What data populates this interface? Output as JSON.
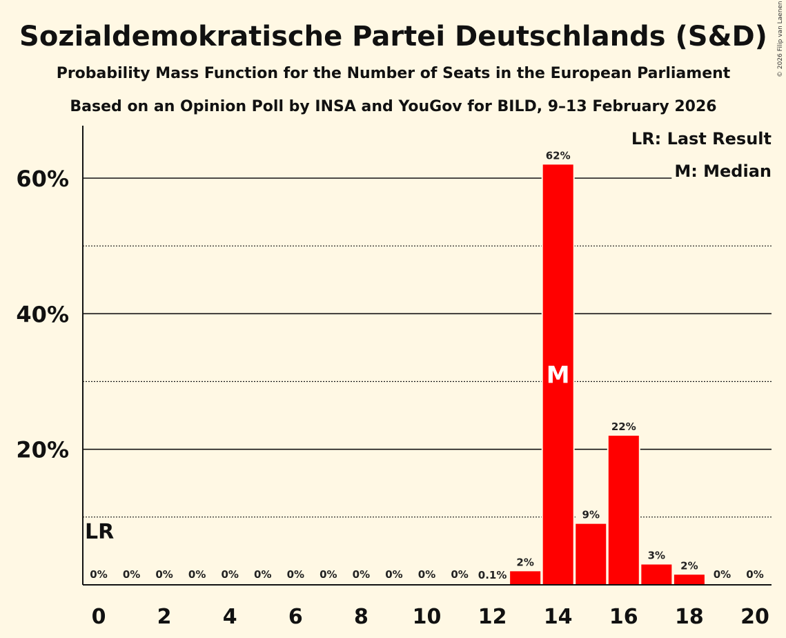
{
  "chart_data": {
    "type": "bar",
    "title": "Sozialdemokratische Partei Deutschlands (S&D)",
    "subtitle1": "Probability Mass Function for the Number of Seats in the European Parliament",
    "subtitle2": "Based on an Opinion Poll by INSA and YouGov for BILD, 9–13 February 2026",
    "copyright": "© 2026 Filip van Laenen",
    "x": [
      0,
      1,
      2,
      3,
      4,
      5,
      6,
      7,
      8,
      9,
      10,
      11,
      12,
      13,
      14,
      15,
      16,
      17,
      18,
      19,
      20
    ],
    "values": [
      0,
      0,
      0,
      0,
      0,
      0,
      0,
      0,
      0,
      0,
      0,
      0,
      0.1,
      2,
      62,
      9,
      22,
      3,
      1.5,
      0,
      0
    ],
    "data_labels": [
      "0%",
      "0%",
      "0%",
      "0%",
      "0%",
      "0%",
      "0%",
      "0%",
      "0%",
      "0%",
      "0%",
      "0%",
      "0.1%",
      "2%",
      "62%",
      "9%",
      "22%",
      "3%",
      "2%",
      "0%",
      "0%"
    ],
    "xticks": [
      0,
      2,
      4,
      6,
      8,
      10,
      12,
      14,
      16,
      18,
      20
    ],
    "xtick_labels": [
      "0",
      "2",
      "4",
      "6",
      "8",
      "10",
      "12",
      "14",
      "16",
      "18",
      "20"
    ],
    "yticks": [
      20,
      40,
      60
    ],
    "ytick_labels": [
      "20%",
      "40%",
      "60%"
    ],
    "minor_yticks": [
      10,
      30,
      50
    ],
    "ylim": [
      0,
      68
    ],
    "bar_color": "#ff0000",
    "last_result_seat": 0,
    "last_result_label": "LR",
    "median_seat": 14,
    "median_label": "M",
    "legend": [
      "LR: Last Result",
      "M: Median"
    ]
  }
}
